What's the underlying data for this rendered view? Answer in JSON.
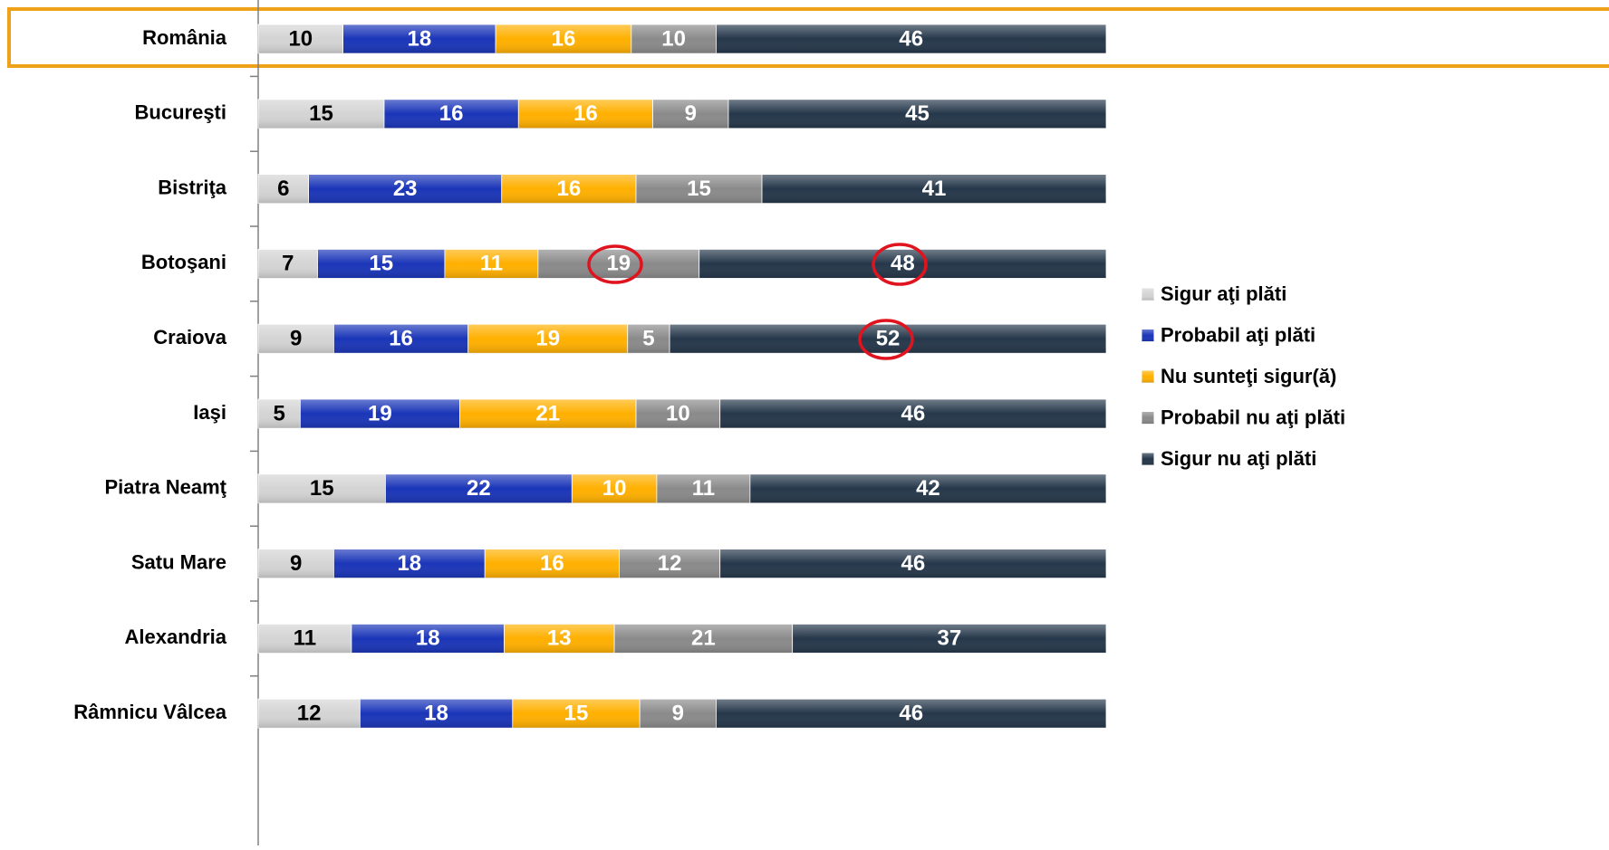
{
  "chart_data": {
    "type": "bar",
    "orientation": "horizontal",
    "stacking": "percent",
    "categories": [
      "România",
      "Bucureşti",
      "Bistriţa",
      "Botoşani",
      "Craiova",
      "Iaşi",
      "Piatra Neamţ",
      "Satu Mare",
      "Alexandria",
      "Râmnicu Vâlcea"
    ],
    "series": [
      {
        "name": "Sigur aţi plăti",
        "color": "#d4d4d4",
        "label_color": "#000000",
        "values": [
          10,
          15,
          6,
          7,
          9,
          5,
          15,
          9,
          11,
          12
        ]
      },
      {
        "name": "Probabil aţi plăti",
        "color": "#1a35b8",
        "label_color": "#ffffff",
        "values": [
          18,
          16,
          23,
          15,
          16,
          19,
          22,
          18,
          18,
          18
        ]
      },
      {
        "name": "Nu sunteţi sigur(ă)",
        "color": "#ffb000",
        "label_color": "#ffffff",
        "values": [
          16,
          16,
          16,
          11,
          19,
          21,
          10,
          16,
          13,
          15
        ]
      },
      {
        "name": "Probabil nu aţi plăti",
        "color": "#8a8a8a",
        "label_color": "#ffffff",
        "values": [
          10,
          9,
          15,
          19,
          5,
          10,
          11,
          12,
          21,
          9
        ]
      },
      {
        "name": "Sigur nu aţi plăti",
        "color": "#25374a",
        "label_color": "#ffffff",
        "values": [
          46,
          45,
          41,
          48,
          52,
          46,
          42,
          46,
          37,
          46
        ]
      }
    ],
    "legend": "right"
  }
}
